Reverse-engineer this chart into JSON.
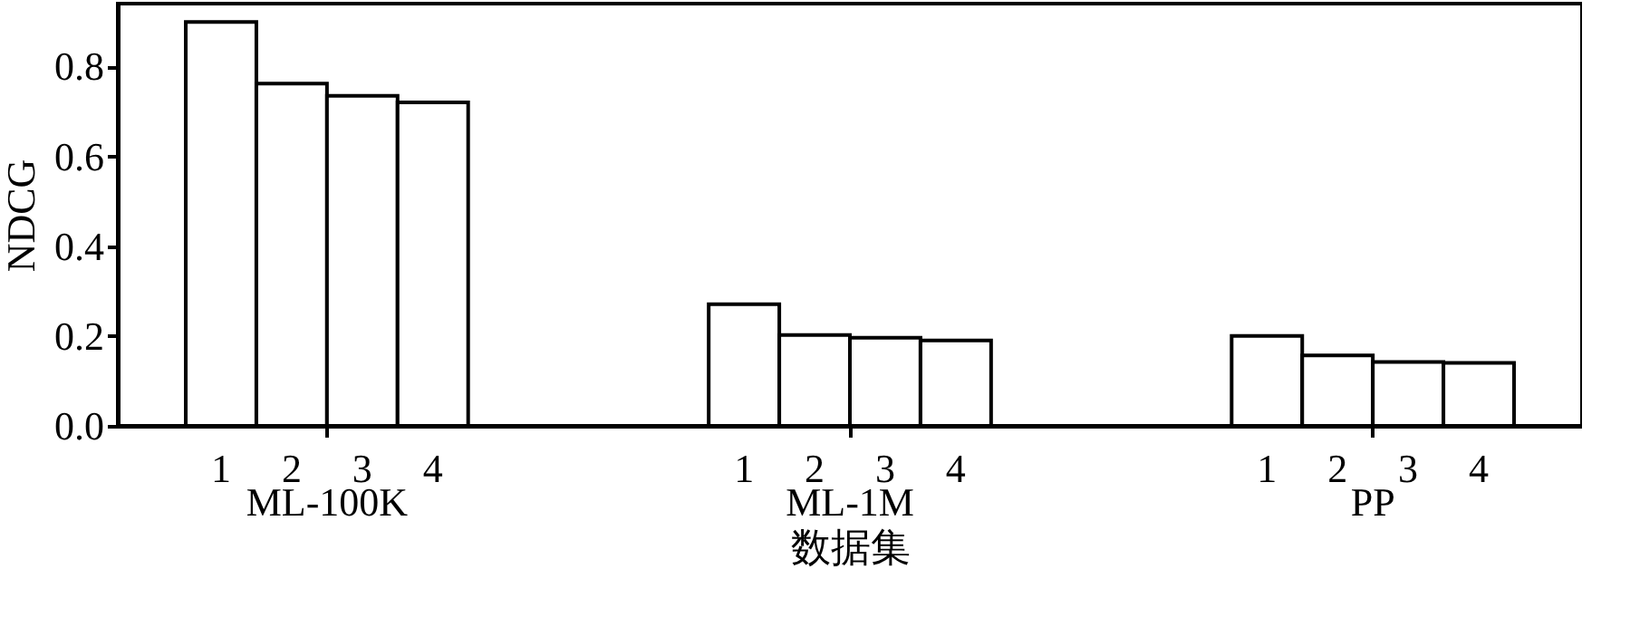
{
  "chart_data": {
    "type": "bar",
    "xlabel": "数据集",
    "ylabel": "NDCG",
    "categories": [
      "ML-100K",
      "ML-1M",
      "PP"
    ],
    "series": [
      {
        "name": "1",
        "color": "#ffffff",
        "values": [
          0.899,
          0.271,
          0.2
        ]
      },
      {
        "name": "2",
        "color": "#ffffff",
        "values": [
          0.762,
          0.202,
          0.157
        ]
      },
      {
        "name": "3",
        "color": "#ffffff",
        "values": [
          0.735,
          0.196,
          0.142
        ]
      },
      {
        "name": "4",
        "color": "#ffffff",
        "values": [
          0.72,
          0.19,
          0.14
        ]
      }
    ],
    "ylim": [
      0,
      0.94
    ],
    "yticks": [
      {
        "value": 0,
        "label": "0.0"
      },
      {
        "value": 0.2,
        "label": "0.2"
      },
      {
        "value": 0.4,
        "label": "0.4"
      },
      {
        "value": 0.6,
        "label": "0.6"
      },
      {
        "value": 0.8,
        "label": "0.8"
      }
    ],
    "grid": false,
    "legend": false
  }
}
